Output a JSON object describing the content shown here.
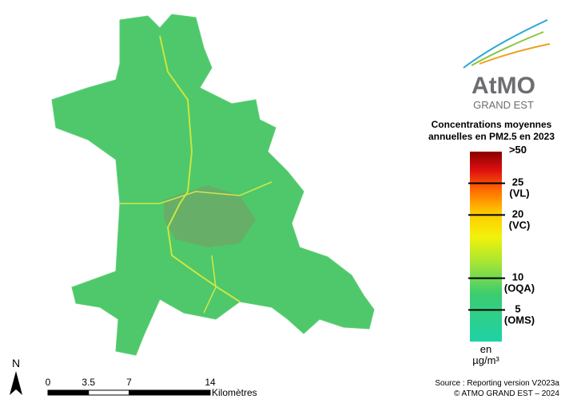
{
  "logo": {
    "name": "AtMO",
    "region": "GRAND EST"
  },
  "legend": {
    "title": [
      "Concentrations moyennes",
      "annuelles en PM2.5 en 2023"
    ],
    "top_label": ">50",
    "lim": [
      0,
      30
    ],
    "ticks": [
      {
        "value": 25,
        "label": "25",
        "code": "(VL)"
      },
      {
        "value": 20,
        "label": "20",
        "code": "(VC)"
      },
      {
        "value": 10,
        "label": "10",
        "code": "(OQA)"
      },
      {
        "value": 5,
        "label": "5",
        "code": "(OMS)"
      }
    ],
    "unit": [
      "en",
      "µg/m³"
    ]
  },
  "scale_bar": {
    "ticks": [
      0,
      3.5,
      7,
      14
    ],
    "unit": "Kilomètres"
  },
  "north": "N",
  "source": [
    "Source : Reporting version V2023a",
    "© ATMO GRAND EST – 2024"
  ]
}
